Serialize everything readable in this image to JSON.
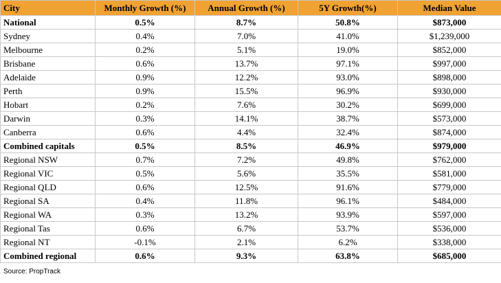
{
  "table": {
    "header": [
      "City",
      "Monthly Growth (%)",
      "Annual Growth (%)",
      "5Y Growth(%)",
      "Median Value"
    ],
    "rows": [
      [
        "National",
        "0.5%",
        "8.7%",
        "50.8%",
        "$873,000"
      ],
      [
        "Sydney",
        "0.4%",
        "7.0%",
        "41.0%",
        "$1,239,000"
      ],
      [
        "Melbourne",
        "0.2%",
        "5.1%",
        "19.0%",
        "$852,000"
      ],
      [
        "Brisbane",
        "0.6%",
        "13.7%",
        "97.1%",
        "$997,000"
      ],
      [
        "Adelaide",
        "0.9%",
        "12.2%",
        "93.0%",
        "$898,000"
      ],
      [
        "Perth",
        "0.9%",
        "15.5%",
        "96.9%",
        "$930,000"
      ],
      [
        "Hobart",
        "0.2%",
        "7.6%",
        "30.2%",
        "$699,000"
      ],
      [
        "Darwin",
        "0.3%",
        "14.1%",
        "38.7%",
        "$573,000"
      ],
      [
        "Canberra",
        "0.6%",
        "4.4%",
        "32.4%",
        "$874,000"
      ],
      [
        "Combined capitals",
        "0.5%",
        "8.5%",
        "46.9%",
        "$979,000"
      ],
      [
        "Regional NSW",
        "0.7%",
        "7.2%",
        "49.8%",
        "$762,000"
      ],
      [
        "Regional VIC",
        "0.5%",
        "5.6%",
        "35.5%",
        "$581,000"
      ],
      [
        "Regional QLD",
        "0.6%",
        "12.5%",
        "91.6%",
        "$779,000"
      ],
      [
        "Regional SA",
        "0.4%",
        "11.8%",
        "96.1%",
        "$484,000"
      ],
      [
        "Regional WA",
        "0.3%",
        "13.2%",
        "93.9%",
        "$597,000"
      ],
      [
        "Regional Tas",
        "0.6%",
        "6.7%",
        "53.7%",
        "$536,000"
      ],
      [
        "Regional NT",
        "-0.1%",
        "2.1%",
        "6.2%",
        "$338,000"
      ],
      [
        "Combined regional",
        "0.6%",
        "9.3%",
        "63.8%",
        "$685,000"
      ]
    ]
  },
  "source": "Source: PropTrack"
}
